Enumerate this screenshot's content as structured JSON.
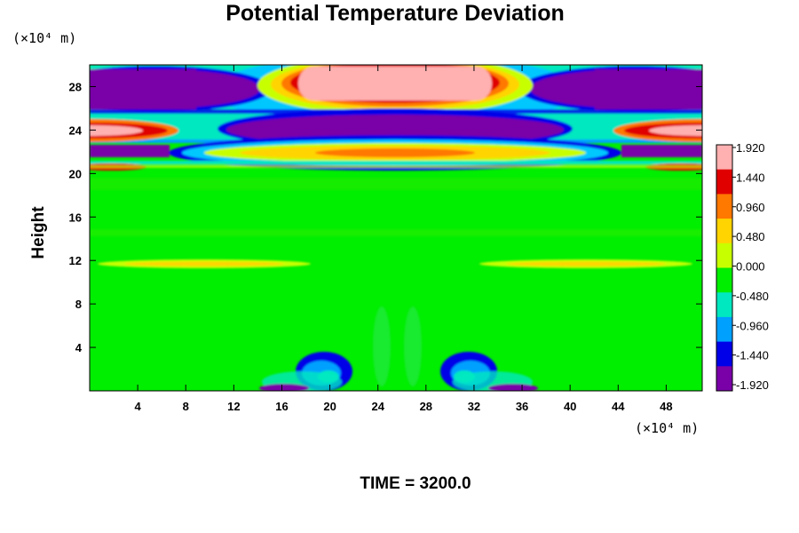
{
  "chart_data": {
    "type": "heatmap",
    "title": "Potential Temperature Deviation",
    "ylabel": "Height",
    "y_unit": "(×10⁴ m)",
    "x_unit": "(×10⁴ m)",
    "xlim": [
      0,
      51
    ],
    "ylim": [
      0,
      30
    ],
    "x_ticks": [
      "4",
      "8",
      "12",
      "16",
      "20",
      "24",
      "28",
      "32",
      "36",
      "40",
      "44",
      "48"
    ],
    "y_ticks": [
      "4",
      "8",
      "12",
      "16",
      "20",
      "24",
      "28"
    ],
    "colorbar": {
      "min": -1.92,
      "max": 1.92,
      "labels": [
        "1.920",
        "1.440",
        "0.960",
        "0.480",
        "0.000",
        "-0.480",
        "-0.960",
        "-1.440",
        "-1.920"
      ],
      "colors": [
        "#ffb0b0",
        "#e00000",
        "#ff7800",
        "#ffd400",
        "#c8ff00",
        "#00ee00",
        "#00e8c0",
        "#00a0ff",
        "#0000e8",
        "#7a00a8"
      ]
    },
    "features": [
      {
        "description": "strong positive band",
        "x": [
          18,
          33
        ],
        "y": [
          26.5,
          30
        ],
        "value": 1.92
      },
      {
        "description": "negative bands",
        "x": [
          0,
          14
        ],
        "y": [
          26,
          29
        ],
        "value": -1.92
      },
      {
        "description": "negative bands",
        "x": [
          37,
          51
        ],
        "y": [
          26,
          29
        ],
        "value": -1.92
      },
      {
        "description": "negative ellipse",
        "x": [
          14,
          37
        ],
        "y": [
          23.2,
          25.7
        ],
        "value": -1.92
      },
      {
        "description": "positive ellipse",
        "x": [
          10,
          41
        ],
        "y": [
          21,
          23
        ],
        "value": 0.96
      },
      {
        "description": "positive edge lobes",
        "x": [
          0,
          7
        ],
        "y": [
          23.3,
          24.6
        ],
        "value": 1.92
      },
      {
        "description": "positive edge lobes",
        "x": [
          44,
          51
        ],
        "y": [
          23.3,
          24.6
        ],
        "value": 1.92
      },
      {
        "description": "weak positive band",
        "x": [
          0,
          51
        ],
        "y": [
          11,
          12
        ],
        "value": 0.48
      },
      {
        "description": "surface vortices",
        "x": [
          14,
          21
        ],
        "y": [
          0,
          3
        ],
        "value": -1.92
      },
      {
        "description": "surface vortices",
        "x": [
          29,
          36
        ],
        "y": [
          0,
          3
        ],
        "value": -1.92
      }
    ]
  },
  "footer": {
    "time_label": "TIME = 3200.0"
  }
}
